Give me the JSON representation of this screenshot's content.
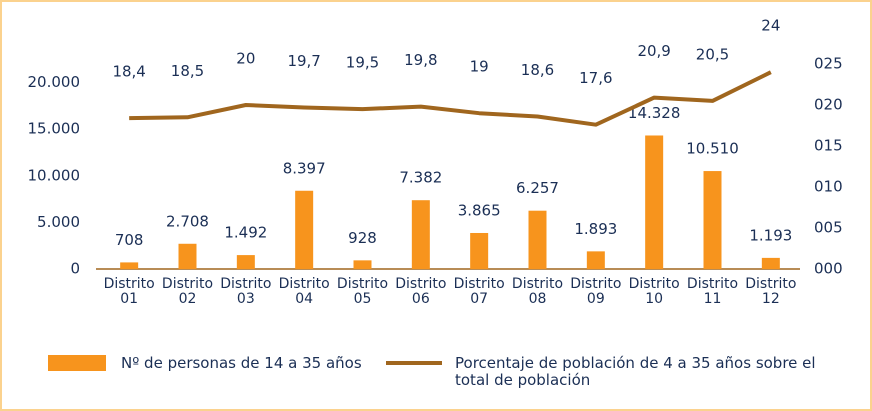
{
  "chart_data": {
    "type": "bar_line",
    "categories": [
      "Distrito 01",
      "Distrito 02",
      "Distrito 03",
      "Distrito 04",
      "Distrito 05",
      "Distrito 06",
      "Distrito 07",
      "Distrito 08",
      "Distrito 09",
      "Distrito 10",
      "Distrito 11",
      "Distrito 12"
    ],
    "series": [
      {
        "name": "Nº de personas de 14 a 35 años",
        "type": "bar",
        "color": "#f7941d",
        "values": [
          708,
          2708,
          1492,
          8397,
          928,
          7382,
          3865,
          6257,
          1893,
          14328,
          10510,
          1193
        ],
        "value_labels": [
          "708",
          "2.708",
          "1.492",
          "8.397",
          "928",
          "7.382",
          "3.865",
          "6.257",
          "1.893",
          "14.328",
          "10.510",
          "1.193"
        ]
      },
      {
        "name": "Porcentaje de población de 4 a 35 años sobre el total de población",
        "type": "line",
        "axis": "y2",
        "color": "#a0661e",
        "values": [
          18.4,
          18.5,
          20,
          19.7,
          19.5,
          19.8,
          19,
          18.6,
          17.6,
          20.9,
          20.5,
          24
        ],
        "value_labels": [
          "18,4",
          "18,5",
          "20",
          "19,7",
          "19,5",
          "19,8",
          "19",
          "18,6",
          "17,6",
          "20,9",
          "20,5",
          "24"
        ]
      }
    ],
    "ylim": [
      0,
      22000
    ],
    "yticks": [
      0,
      {
        "value": 5000,
        "label": "5.000"
      },
      {
        "value": 10000,
        "label": "10.000"
      },
      {
        "value": 15000,
        "label": "15.000"
      },
      {
        "value": 20000,
        "label": "20.000"
      }
    ],
    "y2lim": [
      0,
      25
    ],
    "y2ticks": [
      {
        "value": 0,
        "label": "000"
      },
      {
        "value": 5,
        "label": "005"
      },
      {
        "value": 10,
        "label": "010"
      },
      {
        "value": 15,
        "label": "015"
      },
      {
        "value": 20,
        "label": "020"
      },
      {
        "value": 25,
        "label": "025"
      }
    ]
  }
}
